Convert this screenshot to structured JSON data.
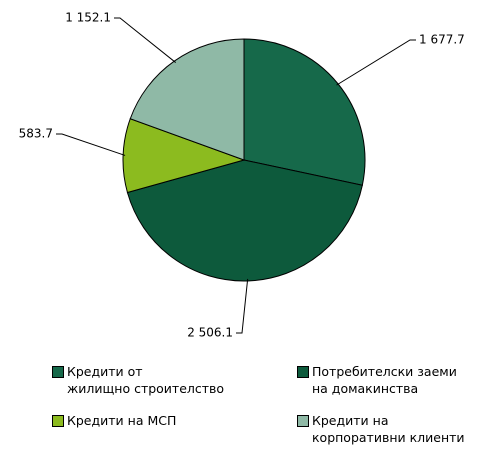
{
  "chart_data": {
    "type": "pie",
    "categories": [
      "Кредити от\nжилищно строителство",
      "Потребителски заеми\nна домакинства",
      "Кредити на МСП",
      "Кредити на\nкорпоративни клиенти"
    ],
    "values": [
      1677.7,
      2506.1,
      583.7,
      1152.1
    ],
    "value_labels": [
      "1 677.7",
      "2 506.1",
      "583.7",
      "1 152.1"
    ],
    "colors": [
      "#16694a",
      "#0d5a3c",
      "#8cbb1f",
      "#8fb9a6"
    ]
  }
}
